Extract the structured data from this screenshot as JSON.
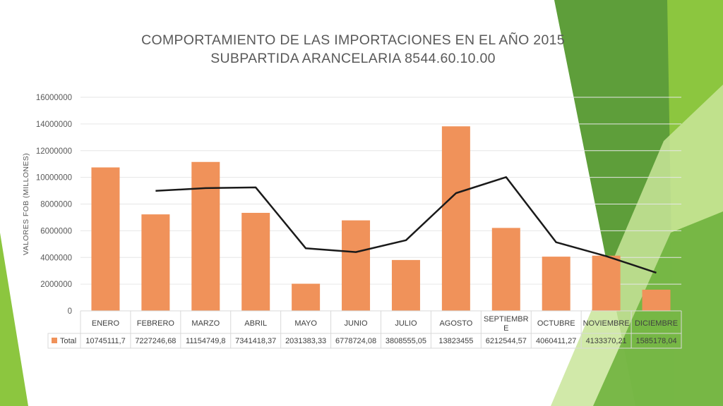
{
  "title": {
    "line1": "COMPORTAMIENTO DE LAS IMPORTACIONES EN EL AÑO 2015",
    "line2": "SUBPARTIDA ARANCELARIA 8544.60.10.00"
  },
  "colors": {
    "bar": "#f0925a",
    "trendline": "#1a1a1a",
    "grid": "#e6e6e6",
    "green_light": "#8cc63f",
    "green_dark": "#5a9a3c"
  },
  "chart_data": {
    "type": "bar",
    "title": "COMPORTAMIENTO DE LAS IMPORTACIONES EN EL AÑO 2015 SUBPARTIDA ARANCELARIA 8544.60.10.00",
    "ylabel": "VALORES FOB (MILLONES)",
    "xlabel": "",
    "ylim": [
      0,
      16000000
    ],
    "yticks": [
      "0",
      "2000000",
      "4000000",
      "6000000",
      "8000000",
      "10000000",
      "12000000",
      "14000000",
      "16000000"
    ],
    "categories": [
      "ENERO",
      "FEBRERO",
      "MARZO",
      "ABRIL",
      "MAYO",
      "JUNIO",
      "JULIO",
      "AGOSTO",
      "SEPTIEMBRE",
      "OCTUBRE",
      "NOVIEMBRE",
      "DICIEMBRE"
    ],
    "series": [
      {
        "name": "Total",
        "values": [
          10745111.7,
          7227246.68,
          11154749.8,
          7341418.37,
          2031383.33,
          6778724.08,
          3808555.05,
          13823455,
          6212544.57,
          4060411.27,
          4133370.21,
          1585178.04
        ],
        "labels": [
          "10745111,7",
          "7227246,68",
          "11154749,8",
          "7341418,37",
          "2031383,33",
          "6778724,08",
          "3808555,05",
          "13823455",
          "6212544,57",
          "4060411,27",
          "4133370,21",
          "1585178,04"
        ]
      }
    ],
    "trendline": {
      "type": "moving-average",
      "values": [
        null,
        8986179.19,
        9190998.24,
        9248084.09,
        4686400.85,
        4405053.71,
        5293639.57,
        8816005.05,
        10017999.79,
        5136477.92,
        4096890.74,
        2859274.13
      ]
    },
    "grid": true,
    "legend": "table-below"
  }
}
